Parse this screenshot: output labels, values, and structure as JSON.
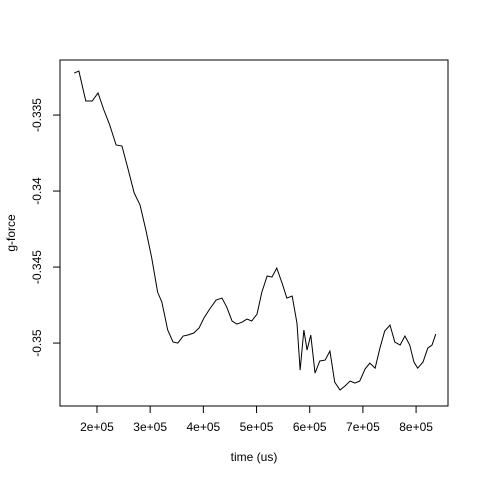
{
  "chart_data": {
    "type": "line",
    "x_label": "time (us)",
    "y_label": "g-force",
    "color": "#000000",
    "x": [
      157000,
      166000,
      179000,
      191000,
      202000,
      213000,
      224000,
      236000,
      247000,
      258000,
      270000,
      281000,
      292000,
      303000,
      314000,
      322000,
      333000,
      343000,
      352000,
      362000,
      371000,
      382000,
      392000,
      401000,
      412000,
      424000,
      435000,
      444000,
      454000,
      463000,
      473000,
      482000,
      491000,
      501000,
      510000,
      520000,
      529000,
      538000,
      548000,
      557000,
      567000,
      576000,
      582000,
      589000,
      595000,
      602000,
      610000,
      619000,
      629000,
      638000,
      647000,
      657000,
      666000,
      676000,
      685000,
      694000,
      704000,
      713000,
      723000,
      732000,
      741000,
      751000,
      760000,
      770000,
      779000,
      788000,
      796000,
      803000,
      813000,
      822000,
      830000,
      837000
    ],
    "values": [
      -0.33224,
      -0.33211,
      -0.33408,
      -0.33408,
      -0.33355,
      -0.33467,
      -0.33566,
      -0.33697,
      -0.33704,
      -0.33849,
      -0.34013,
      -0.34092,
      -0.34257,
      -0.34441,
      -0.34665,
      -0.3473,
      -0.34914,
      -0.34993,
      -0.35,
      -0.34954,
      -0.34947,
      -0.34934,
      -0.34901,
      -0.34836,
      -0.34776,
      -0.34717,
      -0.34704,
      -0.34763,
      -0.34855,
      -0.34875,
      -0.34862,
      -0.34842,
      -0.34855,
      -0.34809,
      -0.34665,
      -0.34559,
      -0.34566,
      -0.34507,
      -0.34605,
      -0.34704,
      -0.34691,
      -0.34868,
      -0.35178,
      -0.34914,
      -0.35046,
      -0.34947,
      -0.35197,
      -0.35118,
      -0.35112,
      -0.35053,
      -0.35257,
      -0.35309,
      -0.35283,
      -0.3525,
      -0.35263,
      -0.3525,
      -0.35171,
      -0.35132,
      -0.35165,
      -0.35033,
      -0.34921,
      -0.34882,
      -0.34993,
      -0.35013,
      -0.34954,
      -0.35013,
      -0.35125,
      -0.35165,
      -0.35125,
      -0.35033,
      -0.35013,
      -0.34941
    ],
    "xlim": [
      130500,
      860000
    ],
    "xticks": [
      {
        "value": 200000,
        "label": "2e+05"
      },
      {
        "value": 300000,
        "label": "3e+05"
      },
      {
        "value": 400000,
        "label": "4e+05"
      },
      {
        "value": 500000,
        "label": "5e+05"
      },
      {
        "value": 600000,
        "label": "6e+05"
      },
      {
        "value": 700000,
        "label": "7e+05"
      },
      {
        "value": 800000,
        "label": "8e+05"
      }
    ],
    "ylim": [
      -0.35414,
      -0.33138
    ],
    "yticks": [
      -0.35,
      -0.345,
      -0.34,
      -0.335
    ]
  }
}
